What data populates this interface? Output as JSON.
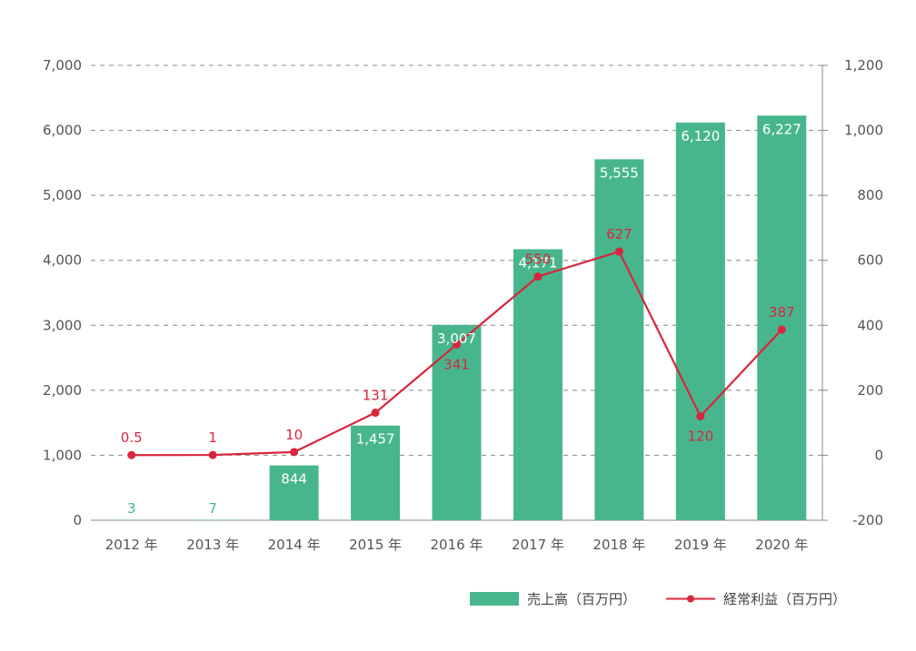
{
  "chart_data": {
    "type": "bar",
    "categories": [
      "2012 年",
      "2013 年",
      "2014 年",
      "2015 年",
      "2016 年",
      "2017 年",
      "2018 年",
      "2019 年",
      "2020 年"
    ],
    "series": [
      {
        "name": "売上高（百万円）",
        "type": "bar",
        "axis": "left",
        "color": "#48b68c",
        "values": [
          3,
          7,
          844,
          1457,
          3007,
          4171,
          5555,
          6120,
          6227
        ],
        "labels": [
          "3",
          "7",
          "844",
          "1,457",
          "3,007",
          "4,171",
          "5,555",
          "6,120",
          "6,227"
        ]
      },
      {
        "name": "経常利益（百万円）",
        "type": "line",
        "axis": "right",
        "color": "#d7263d",
        "values": [
          0.5,
          1,
          10,
          131,
          341,
          550,
          627,
          120,
          387
        ],
        "labels": [
          "0.5",
          "1",
          "10",
          "131",
          "341",
          "550",
          "627",
          "120",
          "387"
        ]
      }
    ],
    "left_axis": {
      "ylim": [
        0,
        7000
      ],
      "ticks": [
        0,
        1000,
        2000,
        3000,
        4000,
        5000,
        6000,
        7000
      ],
      "tick_labels": [
        "0",
        "1,000",
        "2,000",
        "3,000",
        "4,000",
        "5,000",
        "6,000",
        "7,000"
      ]
    },
    "right_axis": {
      "ylim": [
        -200,
        1200
      ],
      "ticks": [
        -200,
        0,
        200,
        400,
        600,
        800,
        1000,
        1200
      ],
      "tick_labels": [
        "-200",
        "0",
        "200",
        "400",
        "600",
        "800",
        "1,000",
        "1,200"
      ]
    },
    "grid": true,
    "grid_style": "dashed",
    "legend_position": "bottom-right",
    "colors": {
      "grid": "#888888",
      "axis": "#888888",
      "tick_text": "#555555"
    }
  }
}
